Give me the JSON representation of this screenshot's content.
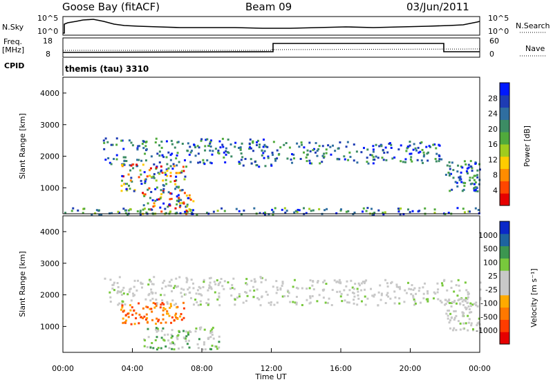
{
  "header": {
    "station": "Goose Bay (fitACF)",
    "beam": "Beam 09",
    "date": "03/Jun/2011"
  },
  "aux_panels": {
    "nsky_label": "N.Sky",
    "nsky_ticks": [
      "10^5",
      "10^0"
    ],
    "nsearch_label": "N.Search",
    "nsearch_ticks": [
      "10^5",
      "10^0"
    ],
    "freq_label": "Freq.",
    "freq_unit": "[MHz]",
    "freq_ticks": [
      "18",
      "8"
    ],
    "nave_label": "Nave",
    "nave_ticks": [
      "60",
      "0"
    ],
    "cpid_label": "CPID",
    "cpid_text": "themis (tau) 3310"
  },
  "chart_data": [
    {
      "type": "heatmap",
      "name": "power",
      "ylabel": "Slant Range [km]",
      "xlabel": "Time UT",
      "x_ticks": [
        "00:00",
        "04:00",
        "08:00",
        "12:00",
        "16:00",
        "20:00",
        "00:00"
      ],
      "y_ticks": [
        "4000",
        "3000",
        "2000",
        "1000"
      ],
      "xlim_hours": [
        0,
        24
      ],
      "ylim_km": [
        180,
        4500
      ],
      "colorbar": {
        "label": "Power [dB]",
        "ticks": [
          "28",
          "24",
          "20",
          "16",
          "12",
          "8",
          "4"
        ],
        "colors": [
          "#0018ff",
          "#1e3cb4",
          "#2f6ea0",
          "#3c8c64",
          "#50aa3c",
          "#a0cc1e",
          "#ffcc00",
          "#ff8c00",
          "#ff4600",
          "#e60000"
        ]
      },
      "echo_regions": [
        {
          "t": [
            2.3,
            12.0
          ],
          "r": [
            1700,
            2600
          ],
          "level": "mid"
        },
        {
          "t": [
            3.3,
            7.0
          ],
          "r": [
            900,
            1800
          ],
          "level": "high"
        },
        {
          "t": [
            4.5,
            7.5
          ],
          "r": [
            180,
            900
          ],
          "level": "high"
        },
        {
          "t": [
            12.0,
            21.8
          ],
          "r": [
            1800,
            2500
          ],
          "level": "mid"
        },
        {
          "t": [
            22.0,
            24.0
          ],
          "r": [
            900,
            1900
          ],
          "level": "mid"
        },
        {
          "t": [
            0.0,
            24.0
          ],
          "r": [
            180,
            400
          ],
          "level": "low"
        }
      ]
    },
    {
      "type": "heatmap",
      "name": "velocity",
      "ylabel": "Slant Range [km]",
      "xlabel": "Time UT",
      "x_ticks": [
        "00:00",
        "04:00",
        "08:00",
        "12:00",
        "16:00",
        "20:00",
        "00:00"
      ],
      "y_ticks": [
        "4000",
        "3000",
        "2000",
        "1000"
      ],
      "xlim_hours": [
        0,
        24
      ],
      "ylim_km": [
        180,
        4500
      ],
      "colorbar": {
        "label": "Velocity [m s⁻¹]",
        "ticks": [
          "1000",
          "500",
          "100",
          "25",
          "-25",
          "-100",
          "-500",
          "-1000"
        ],
        "colors": [
          "#0a28c8",
          "#1e64a0",
          "#3c9650",
          "#78c83c",
          "#c8c8c8",
          "#c8c8c8",
          "#ffaa00",
          "#ff7800",
          "#ff3c00",
          "#e60000"
        ]
      },
      "echo_regions": [
        {
          "t": [
            2.3,
            12.0
          ],
          "r": [
            1700,
            2600
          ],
          "level": "ground"
        },
        {
          "t": [
            3.3,
            7.0
          ],
          "r": [
            1100,
            1800
          ],
          "level": "away"
        },
        {
          "t": [
            4.5,
            9.0
          ],
          "r": [
            300,
            1000
          ],
          "level": "toward"
        },
        {
          "t": [
            12.0,
            24.0
          ],
          "r": [
            1700,
            2500
          ],
          "level": "ground"
        },
        {
          "t": [
            22.0,
            24.0
          ],
          "r": [
            900,
            1900
          ],
          "level": "ground"
        }
      ]
    }
  ]
}
